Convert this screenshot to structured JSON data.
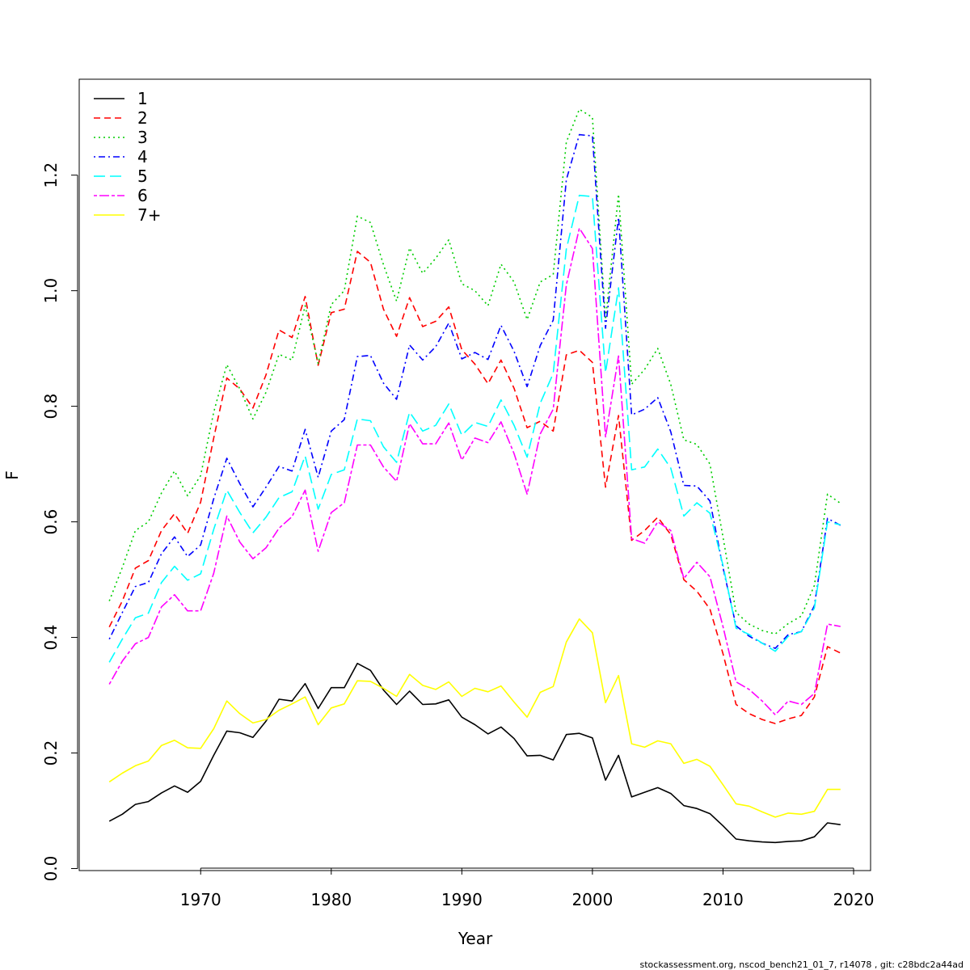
{
  "chart_data": {
    "type": "line",
    "xlabel": "Year",
    "ylabel": "F",
    "xlim": [
      1960.7,
      2021.3
    ],
    "ylim": [
      -0.0035,
      1.366
    ],
    "x_ticks": [
      1970,
      1980,
      1990,
      2000,
      2010,
      2020
    ],
    "y_ticks": [
      0.0,
      0.2,
      0.4,
      0.6,
      0.8,
      1.0,
      1.2
    ],
    "y_tick_labels": [
      "0.0",
      "0.2",
      "0.4",
      "0.6",
      "0.8",
      "1.0",
      "1.2"
    ],
    "legend_position": "top-left",
    "grid": false,
    "x": [
      1963,
      1964,
      1965,
      1966,
      1967,
      1968,
      1969,
      1970,
      1971,
      1972,
      1973,
      1974,
      1975,
      1976,
      1977,
      1978,
      1979,
      1980,
      1981,
      1982,
      1983,
      1984,
      1985,
      1986,
      1987,
      1988,
      1989,
      1990,
      1991,
      1992,
      1993,
      1994,
      1995,
      1996,
      1997,
      1998,
      1999,
      2000,
      2001,
      2002,
      2003,
      2004,
      2005,
      2006,
      2007,
      2008,
      2009,
      2010,
      2011,
      2012,
      2013,
      2014,
      2015,
      2016,
      2017,
      2018,
      2019
    ],
    "series": [
      {
        "name": "1",
        "color": "#000000",
        "dash": "solid",
        "values": [
          0.082,
          0.094,
          0.111,
          0.116,
          0.131,
          0.143,
          0.132,
          0.151,
          0.196,
          0.238,
          0.235,
          0.227,
          0.255,
          0.293,
          0.29,
          0.32,
          0.277,
          0.313,
          0.313,
          0.355,
          0.343,
          0.309,
          0.284,
          0.307,
          0.284,
          0.285,
          0.292,
          0.262,
          0.249,
          0.233,
          0.245,
          0.225,
          0.195,
          0.196,
          0.188,
          0.232,
          0.234,
          0.226,
          0.153,
          0.196,
          0.124,
          0.132,
          0.14,
          0.13,
          0.109,
          0.104,
          0.095,
          0.074,
          0.051,
          0.048,
          0.046,
          0.045,
          0.047,
          0.048,
          0.055,
          0.079,
          0.076
        ]
      },
      {
        "name": "2",
        "color": "#ff0000",
        "dash": "dashed",
        "values": [
          0.418,
          0.463,
          0.52,
          0.533,
          0.585,
          0.614,
          0.58,
          0.634,
          0.745,
          0.849,
          0.83,
          0.797,
          0.854,
          0.932,
          0.919,
          0.99,
          0.871,
          0.962,
          0.968,
          1.068,
          1.049,
          0.968,
          0.921,
          0.988,
          0.938,
          0.947,
          0.972,
          0.898,
          0.873,
          0.839,
          0.88,
          0.831,
          0.763,
          0.774,
          0.757,
          0.889,
          0.897,
          0.876,
          0.66,
          0.784,
          0.568,
          0.585,
          0.608,
          0.578,
          0.5,
          0.48,
          0.449,
          0.372,
          0.284,
          0.268,
          0.258,
          0.251,
          0.259,
          0.265,
          0.297,
          0.384,
          0.373
        ]
      },
      {
        "name": "3",
        "color": "#00cd00",
        "dash": "dotted",
        "values": [
          0.463,
          0.521,
          0.585,
          0.6,
          0.65,
          0.688,
          0.645,
          0.68,
          0.79,
          0.872,
          0.83,
          0.778,
          0.824,
          0.89,
          0.88,
          0.974,
          0.874,
          0.976,
          1.0,
          1.129,
          1.118,
          1.045,
          0.982,
          1.074,
          1.03,
          1.056,
          1.088,
          1.012,
          1.0,
          0.974,
          1.046,
          1.015,
          0.95,
          1.015,
          1.028,
          1.257,
          1.314,
          1.3,
          0.95,
          1.167,
          0.838,
          0.864,
          0.9,
          0.838,
          0.742,
          0.734,
          0.7,
          0.574,
          0.443,
          0.423,
          0.412,
          0.406,
          0.424,
          0.437,
          0.49,
          0.648,
          0.632
        ]
      },
      {
        "name": "4",
        "color": "#0000ff",
        "dash": "dotdash",
        "values": [
          0.397,
          0.443,
          0.488,
          0.495,
          0.545,
          0.574,
          0.54,
          0.56,
          0.64,
          0.71,
          0.666,
          0.626,
          0.66,
          0.696,
          0.688,
          0.76,
          0.677,
          0.757,
          0.777,
          0.886,
          0.888,
          0.84,
          0.812,
          0.906,
          0.88,
          0.903,
          0.944,
          0.882,
          0.893,
          0.881,
          0.94,
          0.895,
          0.834,
          0.905,
          0.949,
          1.192,
          1.27,
          1.268,
          0.935,
          1.127,
          0.785,
          0.795,
          0.815,
          0.756,
          0.663,
          0.662,
          0.636,
          0.521,
          0.42,
          0.402,
          0.39,
          0.381,
          0.405,
          0.41,
          0.455,
          0.606,
          0.594
        ]
      },
      {
        "name": "5",
        "color": "#00ffff",
        "dash": "longdash",
        "values": [
          0.357,
          0.397,
          0.434,
          0.442,
          0.495,
          0.523,
          0.499,
          0.51,
          0.587,
          0.655,
          0.616,
          0.581,
          0.608,
          0.642,
          0.652,
          0.714,
          0.622,
          0.682,
          0.69,
          0.778,
          0.775,
          0.73,
          0.703,
          0.79,
          0.757,
          0.767,
          0.804,
          0.75,
          0.772,
          0.765,
          0.811,
          0.767,
          0.712,
          0.805,
          0.857,
          1.072,
          1.165,
          1.163,
          0.858,
          1.005,
          0.69,
          0.695,
          0.726,
          0.693,
          0.61,
          0.633,
          0.615,
          0.525,
          0.416,
          0.405,
          0.39,
          0.376,
          0.402,
          0.41,
          0.451,
          0.6,
          0.595
        ]
      },
      {
        "name": "6",
        "color": "#ff00ff",
        "dash": "twodash",
        "values": [
          0.319,
          0.359,
          0.389,
          0.4,
          0.453,
          0.474,
          0.446,
          0.446,
          0.511,
          0.61,
          0.565,
          0.536,
          0.555,
          0.589,
          0.609,
          0.655,
          0.549,
          0.616,
          0.633,
          0.733,
          0.733,
          0.695,
          0.67,
          0.77,
          0.735,
          0.735,
          0.771,
          0.707,
          0.745,
          0.737,
          0.773,
          0.718,
          0.648,
          0.752,
          0.795,
          1.01,
          1.108,
          1.073,
          0.747,
          0.887,
          0.571,
          0.563,
          0.6,
          0.585,
          0.502,
          0.53,
          0.505,
          0.419,
          0.323,
          0.31,
          0.29,
          0.266,
          0.29,
          0.284,
          0.303,
          0.423,
          0.419
        ]
      },
      {
        "name": "7+",
        "color": "#ffff00",
        "dash": "solid",
        "values": [
          0.15,
          0.165,
          0.178,
          0.186,
          0.213,
          0.222,
          0.209,
          0.208,
          0.242,
          0.29,
          0.268,
          0.252,
          0.258,
          0.274,
          0.285,
          0.297,
          0.249,
          0.278,
          0.285,
          0.325,
          0.324,
          0.312,
          0.298,
          0.336,
          0.317,
          0.31,
          0.323,
          0.298,
          0.312,
          0.306,
          0.316,
          0.288,
          0.262,
          0.305,
          0.315,
          0.392,
          0.432,
          0.408,
          0.287,
          0.334,
          0.216,
          0.21,
          0.221,
          0.216,
          0.182,
          0.189,
          0.177,
          0.145,
          0.112,
          0.108,
          0.098,
          0.089,
          0.096,
          0.094,
          0.099,
          0.137,
          0.137
        ]
      }
    ]
  },
  "footer": "stockassessment.org, nscod_bench21_01_7, r14078 , git: c28bdc2a44ad"
}
